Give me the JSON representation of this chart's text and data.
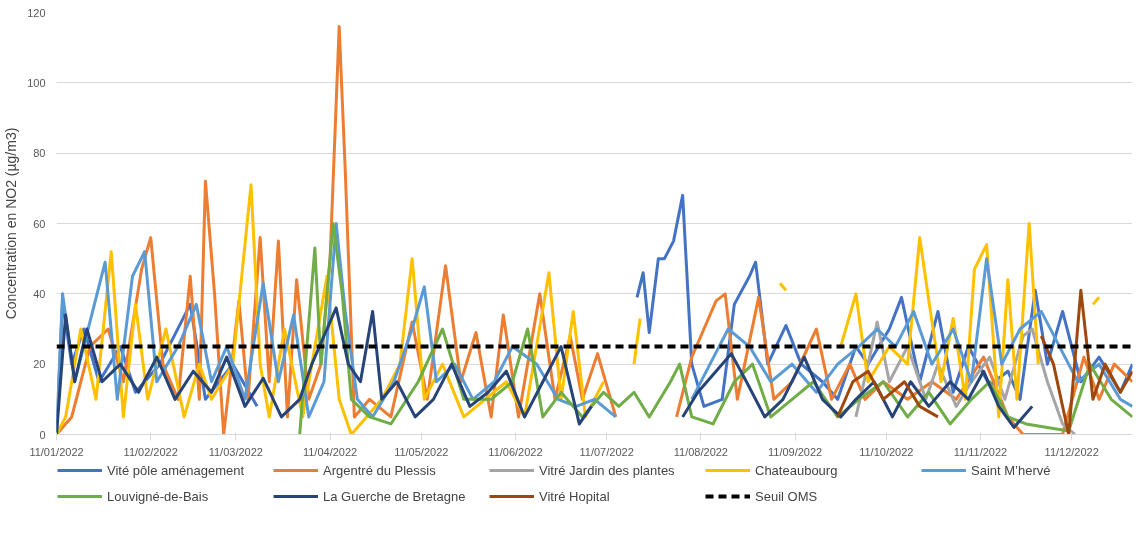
{
  "chart_data": {
    "type": "line",
    "ylabel": "Concentration en NO2 (µg/m3)",
    "ylim": [
      0,
      120
    ],
    "yticks": [
      0,
      20,
      40,
      60,
      80,
      100,
      120
    ],
    "xlim": [
      "2022-01-11",
      "2022-12-31"
    ],
    "xticks": [
      {
        "value": "2022-01-11",
        "label": "11/01/2022"
      },
      {
        "value": "2022-02-11",
        "label": "11/02/2022"
      },
      {
        "value": "2022-03-11",
        "label": "11/03/2022"
      },
      {
        "value": "2022-04-11",
        "label": "11/04/2022"
      },
      {
        "value": "2022-05-11",
        "label": "11/05/2022"
      },
      {
        "value": "2022-06-11",
        "label": "11/06/2022"
      },
      {
        "value": "2022-07-11",
        "label": "11/07/2022"
      },
      {
        "value": "2022-08-11",
        "label": "11/08/2022"
      },
      {
        "value": "2022-09-11",
        "label": "11/09/2022"
      },
      {
        "value": "2022-10-11",
        "label": "11/10/2022"
      },
      {
        "value": "2022-11-11",
        "label": "11/11/2022"
      },
      {
        "value": "2022-12-11",
        "label": "11/12/2022"
      }
    ],
    "grid": "y",
    "legend": "bottom",
    "marker": "none",
    "series": [
      {
        "name": "Vité pôle aménagement",
        "color": "#4472c4",
        "x": [
          "2022-01-11",
          "2022-01-13",
          "2022-01-16",
          "2022-01-20",
          "2022-01-25",
          "2022-02-01",
          "2022-02-06",
          "2022-02-14",
          "2022-02-24",
          "2022-03-01",
          "2022-03-10",
          "2022-03-18",
          "2022-04-01",
          "2022-07-21",
          "2022-07-23",
          "2022-07-25",
          "2022-07-28",
          "2022-07-30",
          "2022-08-02",
          "2022-08-05",
          "2022-08-08",
          "2022-08-12",
          "2022-08-18",
          "2022-08-22",
          "2022-08-27",
          "2022-08-29",
          "2022-09-02",
          "2022-09-08",
          "2022-09-13",
          "2022-09-20",
          "2022-09-25",
          "2022-10-01",
          "2022-10-05",
          "2022-10-12",
          "2022-10-16",
          "2022-10-22",
          "2022-10-28",
          "2022-11-02",
          "2022-11-07",
          "2022-11-14",
          "2022-11-20",
          "2022-11-24",
          "2022-11-29",
          "2022-12-03",
          "2022-12-08",
          "2022-12-14",
          "2022-12-20",
          "2022-12-27",
          "2022-12-31"
        ],
        "values": [
          0,
          38,
          20,
          30,
          15,
          25,
          12,
          20,
          37,
          10,
          20,
          8,
          null,
          39,
          46,
          29,
          50,
          50,
          55,
          68,
          20,
          8,
          10,
          37,
          45,
          49,
          20,
          31,
          20,
          15,
          10,
          25,
          20,
          30,
          39,
          15,
          35,
          12,
          25,
          14,
          18,
          10,
          41,
          20,
          35,
          15,
          22,
          12,
          20
        ]
      },
      {
        "name": "Argentré du Plessis",
        "color": "#ed7d31",
        "x": [
          "2022-01-11",
          "2022-01-16",
          "2022-01-22",
          "2022-01-28",
          "2022-02-02",
          "2022-02-08",
          "2022-02-11",
          "2022-02-15",
          "2022-02-20",
          "2022-02-24",
          "2022-02-27",
          "2022-03-01",
          "2022-03-04",
          "2022-03-07",
          "2022-03-12",
          "2022-03-15",
          "2022-03-19",
          "2022-03-22",
          "2022-03-25",
          "2022-03-28",
          "2022-03-31",
          "2022-04-04",
          "2022-04-08",
          "2022-04-11",
          "2022-04-14",
          "2022-04-16",
          "2022-04-19",
          "2022-04-24",
          "2022-05-01",
          "2022-05-08",
          "2022-05-13",
          "2022-05-19",
          "2022-05-24",
          "2022-05-29",
          "2022-06-03",
          "2022-06-07",
          "2022-06-12",
          "2022-06-19",
          "2022-06-24",
          "2022-06-29",
          "2022-07-03",
          "2022-07-08",
          "2022-07-14",
          "2022-07-20",
          "2022-08-03",
          "2022-08-08",
          "2022-08-12",
          "2022-08-16",
          "2022-08-19",
          "2022-08-23",
          "2022-08-30",
          "2022-09-04",
          "2022-09-10",
          "2022-09-18",
          "2022-09-23",
          "2022-09-29",
          "2022-10-04",
          "2022-10-10",
          "2022-10-18",
          "2022-10-26",
          "2022-11-03",
          "2022-11-12",
          "2022-11-20",
          "2022-11-25",
          "2022-12-08",
          "2022-12-15",
          "2022-12-20",
          "2022-12-25",
          "2022-12-31"
        ],
        "values": [
          0,
          5,
          25,
          30,
          15,
          47,
          56,
          20,
          10,
          45,
          10,
          72,
          40,
          0,
          38,
          10,
          56,
          15,
          55,
          5,
          44,
          10,
          20,
          50,
          116,
          75,
          5,
          10,
          5,
          32,
          10,
          48,
          15,
          29,
          5,
          34,
          5,
          40,
          10,
          28,
          10,
          23,
          5,
          null,
          5,
          22,
          30,
          38,
          40,
          10,
          39,
          10,
          15,
          30,
          10,
          20,
          10,
          15,
          10,
          15,
          10,
          22,
          5,
          0,
          0,
          22,
          10,
          20,
          15
        ]
      },
      {
        "name": "Vitré Jardin des plantes",
        "color": "#a5a5a5",
        "x": [
          "2022-10-01",
          "2022-10-05",
          "2022-10-08",
          "2022-10-12",
          "2022-10-18",
          "2022-10-24",
          "2022-10-28",
          "2022-11-03",
          "2022-11-08",
          "2022-11-14",
          "2022-11-19",
          "2022-11-25",
          "2022-11-28",
          "2022-12-03",
          "2022-12-08",
          "2022-12-12"
        ],
        "values": [
          5,
          20,
          32,
          15,
          25,
          10,
          20,
          8,
          15,
          22,
          10,
          28,
          30,
          15,
          3,
          0
        ]
      },
      {
        "name": "Chateaubourg",
        "color": "#ffc000",
        "x": [
          "2022-01-11",
          "2022-01-14",
          "2022-01-19",
          "2022-01-24",
          "2022-01-29",
          "2022-02-02",
          "2022-02-06",
          "2022-02-10",
          "2022-02-16",
          "2022-02-22",
          "2022-02-27",
          "2022-03-03",
          "2022-03-10",
          "2022-03-16",
          "2022-03-19",
          "2022-03-22",
          "2022-03-27",
          "2022-04-02",
          "2022-04-10",
          "2022-04-14",
          "2022-04-18",
          "2022-04-23",
          "2022-04-28",
          "2022-05-04",
          "2022-05-08",
          "2022-05-12",
          "2022-05-18",
          "2022-05-25",
          "2022-06-01",
          "2022-06-08",
          "2022-06-14",
          "2022-06-22",
          "2022-06-26",
          "2022-06-30",
          "2022-07-04",
          "2022-07-10",
          "2022-07-15",
          "2022-07-20",
          "2022-07-22",
          "2022-07-25",
          "2022-09-06",
          "2022-09-08",
          "2022-09-10",
          "2022-09-26",
          "2022-10-01",
          "2022-10-05",
          "2022-10-12",
          "2022-10-18",
          "2022-10-22",
          "2022-10-25",
          "2022-10-29",
          "2022-11-02",
          "2022-11-06",
          "2022-11-09",
          "2022-11-13",
          "2022-11-17",
          "2022-11-20",
          "2022-11-23",
          "2022-11-27",
          "2022-11-30",
          "2022-12-03",
          "2022-12-18",
          "2022-12-20"
        ],
        "values": [
          0,
          5,
          30,
          10,
          52,
          5,
          37,
          10,
          30,
          5,
          20,
          10,
          20,
          71,
          20,
          5,
          30,
          5,
          45,
          10,
          0,
          5,
          10,
          20,
          50,
          10,
          20,
          5,
          10,
          15,
          5,
          46,
          10,
          35,
          5,
          15,
          null,
          20,
          33,
          null,
          43,
          41,
          null,
          25,
          40,
          15,
          25,
          20,
          56,
          38,
          15,
          33,
          10,
          47,
          54,
          5,
          44,
          10,
          60,
          20,
          null,
          37,
          39
        ]
      },
      {
        "name": "Saint M’hervé",
        "color": "#5b9bd5",
        "x": [
          "2022-01-11",
          "2022-01-13",
          "2022-01-17",
          "2022-01-22",
          "2022-01-27",
          "2022-01-31",
          "2022-02-05",
          "2022-02-09",
          "2022-02-13",
          "2022-02-20",
          "2022-02-26",
          "2022-03-03",
          "2022-03-08",
          "2022-03-14",
          "2022-03-20",
          "2022-03-25",
          "2022-03-30",
          "2022-04-04",
          "2022-04-09",
          "2022-04-13",
          "2022-04-16",
          "2022-04-20",
          "2022-04-25",
          "2022-05-02",
          "2022-05-08",
          "2022-05-12",
          "2022-05-16",
          "2022-05-22",
          "2022-05-28",
          "2022-06-04",
          "2022-06-10",
          "2022-06-18",
          "2022-06-25",
          "2022-07-01",
          "2022-07-07",
          "2022-07-14",
          "2022-07-20",
          "2022-08-08",
          "2022-08-14",
          "2022-08-20",
          "2022-08-27",
          "2022-09-03",
          "2022-09-10",
          "2022-09-18",
          "2022-09-25",
          "2022-10-02",
          "2022-10-08",
          "2022-10-14",
          "2022-10-20",
          "2022-10-26",
          "2022-11-02",
          "2022-11-08",
          "2022-11-13",
          "2022-11-18",
          "2022-11-24",
          "2022-12-01",
          "2022-12-07",
          "2022-12-13",
          "2022-12-20",
          "2022-12-27",
          "2022-12-31"
        ],
        "values": [
          0,
          40,
          15,
          32,
          49,
          10,
          45,
          52,
          15,
          25,
          37,
          15,
          25,
          10,
          43,
          15,
          34,
          5,
          15,
          60,
          35,
          10,
          5,
          15,
          30,
          42,
          15,
          20,
          10,
          15,
          25,
          20,
          10,
          8,
          10,
          5,
          null,
          10,
          20,
          30,
          25,
          15,
          20,
          12,
          20,
          25,
          30,
          25,
          35,
          20,
          30,
          15,
          50,
          20,
          30,
          35,
          25,
          15,
          20,
          10,
          8
        ]
      },
      {
        "name": "Louvigné-de-Bais",
        "color": "#70ad47",
        "x": [
          "2022-04-01",
          "2022-04-06",
          "2022-04-08",
          "2022-04-12",
          "2022-04-15",
          "2022-04-18",
          "2022-04-24",
          "2022-05-01",
          "2022-05-10",
          "2022-05-18",
          "2022-05-25",
          "2022-06-03",
          "2022-06-10",
          "2022-06-15",
          "2022-06-20",
          "2022-06-26",
          "2022-07-03",
          "2022-07-10",
          "2022-07-15",
          "2022-07-20",
          "2022-07-25",
          "2022-08-01",
          "2022-08-04",
          "2022-08-08",
          "2022-08-15",
          "2022-08-22",
          "2022-08-28",
          "2022-09-03",
          "2022-09-10",
          "2022-09-17",
          "2022-09-25",
          "2022-10-02",
          "2022-10-10",
          "2022-10-18",
          "2022-10-25",
          "2022-11-01",
          "2022-11-08",
          "2022-11-14",
          "2022-11-20",
          "2022-11-26",
          "2022-12-03",
          "2022-12-10",
          "2022-12-17",
          "2022-12-24",
          "2022-12-31"
        ],
        "values": [
          0,
          53,
          20,
          60,
          40,
          10,
          5,
          3,
          15,
          30,
          10,
          10,
          15,
          30,
          5,
          12,
          5,
          12,
          8,
          12,
          5,
          15,
          20,
          5,
          3,
          15,
          20,
          5,
          10,
          15,
          5,
          10,
          15,
          5,
          12,
          3,
          10,
          15,
          5,
          3,
          2,
          1,
          20,
          10,
          5
        ]
      },
      {
        "name": "La Guerche de Bretagne",
        "color": "#264478",
        "x": [
          "2022-01-11",
          "2022-01-14",
          "2022-01-17",
          "2022-01-21",
          "2022-01-26",
          "2022-02-01",
          "2022-02-07",
          "2022-02-13",
          "2022-02-19",
          "2022-02-25",
          "2022-03-03",
          "2022-03-08",
          "2022-03-14",
          "2022-03-20",
          "2022-03-26",
          "2022-04-01",
          "2022-04-05",
          "2022-04-10",
          "2022-04-13",
          "2022-04-17",
          "2022-04-21",
          "2022-04-25",
          "2022-04-28",
          "2022-05-03",
          "2022-05-09",
          "2022-05-15",
          "2022-05-21",
          "2022-05-27",
          "2022-06-02",
          "2022-06-08",
          "2022-06-14",
          "2022-06-20",
          "2022-06-26",
          "2022-07-02",
          "2022-07-06",
          "2022-07-10",
          "2022-08-05",
          "2022-08-10",
          "2022-08-16",
          "2022-08-21",
          "2022-08-26",
          "2022-09-01",
          "2022-09-07",
          "2022-09-14",
          "2022-09-20",
          "2022-09-26",
          "2022-10-01",
          "2022-10-07",
          "2022-10-13",
          "2022-10-19",
          "2022-10-25",
          "2022-11-01",
          "2022-11-07",
          "2022-11-12",
          "2022-11-17",
          "2022-11-22",
          "2022-11-28"
        ],
        "values": [
          0,
          34,
          15,
          30,
          15,
          20,
          12,
          22,
          10,
          18,
          12,
          22,
          8,
          16,
          5,
          10,
          20,
          30,
          36,
          20,
          15,
          35,
          10,
          15,
          5,
          10,
          20,
          8,
          12,
          18,
          5,
          15,
          25,
          3,
          8,
          null,
          5,
          12,
          18,
          23,
          15,
          5,
          10,
          22,
          10,
          5,
          10,
          15,
          5,
          15,
          8,
          15,
          10,
          18,
          8,
          2,
          8
        ]
      },
      {
        "name": "Vitré Hopital",
        "color": "#9e480e",
        "x": [
          "2022-09-25",
          "2022-09-30",
          "2022-10-05",
          "2022-10-10",
          "2022-10-17",
          "2022-10-22",
          "2022-10-28",
          "2022-11-03",
          "2022-12-01",
          "2022-12-05",
          "2022-12-10",
          "2022-12-14",
          "2022-12-18",
          "2022-12-22",
          "2022-12-27",
          "2022-12-31"
        ],
        "values": [
          5,
          15,
          18,
          10,
          15,
          8,
          5,
          null,
          28,
          20,
          0,
          41,
          10,
          20,
          12,
          18
        ]
      },
      {
        "name": "Seuil OMS",
        "color": "#000000",
        "line_style": "dashed",
        "x": [
          "2022-01-11",
          "2022-12-31"
        ],
        "values": [
          25,
          25
        ]
      }
    ]
  }
}
